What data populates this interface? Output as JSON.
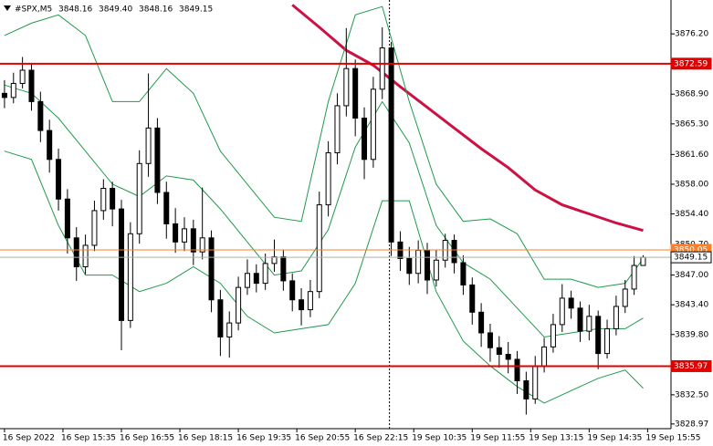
{
  "chart_data": {
    "type": "candlestick",
    "header": {
      "symbol": "#SPX,M5",
      "open": "3848.16",
      "high": "3849.40",
      "low": "3848.16",
      "close": "3849.15"
    },
    "open": [
      3869.0,
      3868.5,
      3870.2,
      3871.8,
      3868.0,
      3864.5,
      3861.0,
      3856.2,
      3851.5,
      3848.0,
      3850.6,
      3854.8,
      3857.5,
      3855.0,
      3841.5,
      3852.0,
      3860.5,
      3864.8,
      3857.0,
      3853.2,
      3851.0,
      3852.6,
      3849.8,
      3851.5,
      3844.0,
      3839.5,
      3841.2,
      3845.5,
      3847.2,
      3846.0,
      3848.4,
      3849.2,
      3846.3,
      3844.0,
      3842.8,
      3845.0,
      3855.5,
      3861.8,
      3867.5,
      3872.0,
      3866.0,
      3861.0,
      3869.5,
      3874.5,
      3851.0,
      3849.0,
      3847.2,
      3850.0,
      3846.4,
      3848.8,
      3851.2,
      3848.5,
      3845.8,
      3842.5,
      3840.0,
      3838.2,
      3837.4,
      3836.8,
      3834.2,
      3832.0,
      3836.0,
      3838.3,
      3841.0,
      3844.2,
      3843.0,
      3840.2,
      3842.0,
      3837.5,
      3840.5,
      3843.2,
      3845.3,
      3848.16
    ],
    "high": [
      3870.6,
      3871.5,
      3873.4,
      3872.6,
      3869.2,
      3865.8,
      3862.3,
      3857.4,
      3852.8,
      3851.9,
      3856.0,
      3858.6,
      3858.3,
      3856.1,
      3853.4,
      3862.1,
      3871.4,
      3866.0,
      3858.3,
      3855.1,
      3854.0,
      3853.7,
      3857.6,
      3852.4,
      3845.2,
      3842.6,
      3846.8,
      3848.9,
      3848.3,
      3849.6,
      3851.3,
      3850.0,
      3847.2,
      3845.4,
      3846.4,
      3857.1,
      3863.2,
      3869.0,
      3876.9,
      3873.1,
      3867.3,
      3871.0,
      3877.0,
      3875.2,
      3852.3,
      3850.4,
      3851.2,
      3850.9,
      3850.1,
      3852.0,
      3851.9,
      3849.4,
      3846.7,
      3843.6,
      3841.1,
      3839.6,
      3838.9,
      3837.8,
      3835.3,
      3837.2,
      3839.4,
      3842.3,
      3845.9,
      3845.1,
      3843.8,
      3843.4,
      3842.7,
      3841.6,
      3844.5,
      3846.4,
      3849.3,
      3849.4
    ],
    "low": [
      3867.2,
      3867.8,
      3869.6,
      3866.9,
      3863.1,
      3859.4,
      3854.8,
      3849.6,
      3846.3,
      3847.1,
      3849.9,
      3853.7,
      3852.9,
      3837.9,
      3840.6,
      3850.8,
      3858.9,
      3855.6,
      3851.4,
      3849.7,
      3849.9,
      3848.2,
      3848.9,
      3842.5,
      3837.2,
      3837.0,
      3840.3,
      3844.6,
      3844.9,
      3845.2,
      3847.4,
      3845.1,
      3842.6,
      3840.9,
      3841.9,
      3844.2,
      3854.1,
      3860.4,
      3866.2,
      3863.8,
      3858.6,
      3860.0,
      3868.3,
      3849.3,
      3847.5,
      3845.8,
      3846.0,
      3844.7,
      3845.6,
      3847.9,
      3847.2,
      3844.6,
      3841.0,
      3838.3,
      3836.5,
      3835.8,
      3835.1,
      3832.6,
      3830.1,
      3831.4,
      3835.2,
      3837.6,
      3840.1,
      3841.7,
      3838.9,
      3839.1,
      3835.6,
      3836.9,
      3839.7,
      3842.4,
      3844.6,
      3848.16
    ],
    "close": [
      3868.5,
      3870.2,
      3871.8,
      3868.0,
      3864.5,
      3861.0,
      3856.2,
      3851.5,
      3848.0,
      3850.6,
      3854.8,
      3857.5,
      3855.0,
      3841.5,
      3852.0,
      3860.5,
      3864.8,
      3857.0,
      3853.2,
      3851.0,
      3852.6,
      3849.8,
      3851.5,
      3844.0,
      3839.5,
      3841.2,
      3845.5,
      3847.2,
      3846.0,
      3848.4,
      3849.2,
      3846.3,
      3844.0,
      3842.8,
      3845.0,
      3855.5,
      3861.8,
      3867.5,
      3872.0,
      3866.0,
      3861.0,
      3869.5,
      3874.5,
      3851.0,
      3849.0,
      3847.2,
      3850.0,
      3846.4,
      3848.8,
      3851.2,
      3848.5,
      3845.8,
      3842.5,
      3840.0,
      3838.2,
      3837.4,
      3836.8,
      3834.2,
      3832.0,
      3836.0,
      3838.3,
      3841.0,
      3844.2,
      3843.0,
      3840.2,
      3842.0,
      3837.5,
      3840.5,
      3843.2,
      3845.3,
      3848.16,
      3849.15
    ],
    "series": [
      {
        "color": "#cc1144",
        "x": [
          32,
          35,
          38,
          41,
          44,
          47,
          50,
          53,
          56,
          59,
          62,
          65,
          68,
          71
        ],
        "values": [
          3879.7,
          3877.0,
          3874.2,
          3872.4,
          3869.8,
          3867.3,
          3864.8,
          3862.3,
          3860.0,
          3857.3,
          3855.5,
          3854.4,
          3853.3,
          3852.4
        ]
      },
      {
        "color": "#1f9a4a",
        "x": [
          0,
          3,
          6,
          9,
          12,
          15,
          18,
          21,
          24,
          27,
          30,
          33,
          36,
          39,
          42,
          45,
          48,
          51,
          54,
          57,
          60,
          63,
          66,
          69,
          71
        ],
        "values": [
          3876,
          3877.5,
          3878.5,
          3876,
          3868,
          3868,
          3872,
          3869,
          3862,
          3858,
          3854,
          3853.5,
          3868,
          3878.5,
          3879.5,
          3868,
          3858,
          3853.5,
          3853.8,
          3852,
          3846.5,
          3846.5,
          3845.5,
          3846,
          3849
        ]
      },
      {
        "color": "#1f9a4a",
        "x": [
          0,
          3,
          6,
          9,
          12,
          15,
          18,
          21,
          24,
          27,
          30,
          33,
          36,
          39,
          42,
          45,
          48,
          51,
          54,
          57,
          60,
          63,
          66,
          69,
          71
        ],
        "values": [
          3870,
          3869,
          3866,
          3862,
          3858,
          3856.5,
          3859,
          3858.5,
          3855,
          3851,
          3847,
          3847.5,
          3852.5,
          3862.5,
          3868,
          3863,
          3853,
          3848.5,
          3846.5,
          3843,
          3839.5,
          3840,
          3840.5,
          3840.5,
          3841.8
        ]
      },
      {
        "color": "#1f9a4a",
        "x": [
          0,
          3,
          6,
          9,
          12,
          15,
          18,
          21,
          24,
          27,
          30,
          33,
          36,
          39,
          42,
          45,
          48,
          51,
          54,
          57,
          60,
          63,
          66,
          69,
          71
        ],
        "values": [
          3862,
          3861,
          3853,
          3847,
          3847,
          3845,
          3846,
          3848,
          3846,
          3842,
          3840,
          3840.5,
          3841,
          3846,
          3856,
          3856,
          3845,
          3839,
          3836,
          3833.5,
          3831.5,
          3833,
          3834.5,
          3835.5,
          3833.3
        ]
      }
    ],
    "levels": [
      {
        "value": 3872.59,
        "label": "3872.59",
        "color": "#e00000"
      },
      {
        "value": 3835.97,
        "label": "3835.97",
        "color": "#e00000"
      },
      {
        "value": 3850.05,
        "label": "3850.05",
        "color": "#ff7f27"
      },
      {
        "value": 3849.15,
        "label": "3849.15",
        "color": "#b0b0b0"
      }
    ],
    "period_separator": 42.8,
    "xlim": [
      -0.5,
      74.1
    ],
    "ylim": [
      3828.4,
      3880.3
    ],
    "yticks": [
      {
        "value": 3876.2,
        "label": "3876.20"
      },
      {
        "value": 3868.9,
        "label": "3868.90"
      },
      {
        "value": 3865.3,
        "label": "3865.30"
      },
      {
        "value": 3861.6,
        "label": "3861.60"
      },
      {
        "value": 3858.0,
        "label": "3858.00"
      },
      {
        "value": 3854.4,
        "label": "3854.40"
      },
      {
        "value": 3850.7,
        "label": "3850.70"
      },
      {
        "value": 3847.0,
        "label": "3847.00"
      },
      {
        "value": 3843.4,
        "label": "3843.40"
      },
      {
        "value": 3839.8,
        "label": "3839.80"
      },
      {
        "value": 3832.5,
        "label": "3832.50"
      },
      {
        "value": 3828.97,
        "label": "3828.97"
      }
    ],
    "xticks": [
      {
        "value": 0,
        "label": "16 Sep 2022"
      },
      {
        "value": 6.5,
        "label": "16 Sep 15:35"
      },
      {
        "value": 13,
        "label": "16 Sep 16:55"
      },
      {
        "value": 19.5,
        "label": "16 Sep 18:15"
      },
      {
        "value": 26,
        "label": "16 Sep 19:35"
      },
      {
        "value": 32.5,
        "label": "16 Sep 20:55"
      },
      {
        "value": 39,
        "label": "16 Sep 22:15"
      },
      {
        "value": 45.5,
        "label": "19 Sep 10:35"
      },
      {
        "value": 52,
        "label": "19 Sep 11:55"
      },
      {
        "value": 58.5,
        "label": "19 Sep 13:15"
      },
      {
        "value": 65,
        "label": "19 Sep 14:35"
      },
      {
        "value": 71.5,
        "label": "19 Sep 15:55"
      }
    ]
  }
}
